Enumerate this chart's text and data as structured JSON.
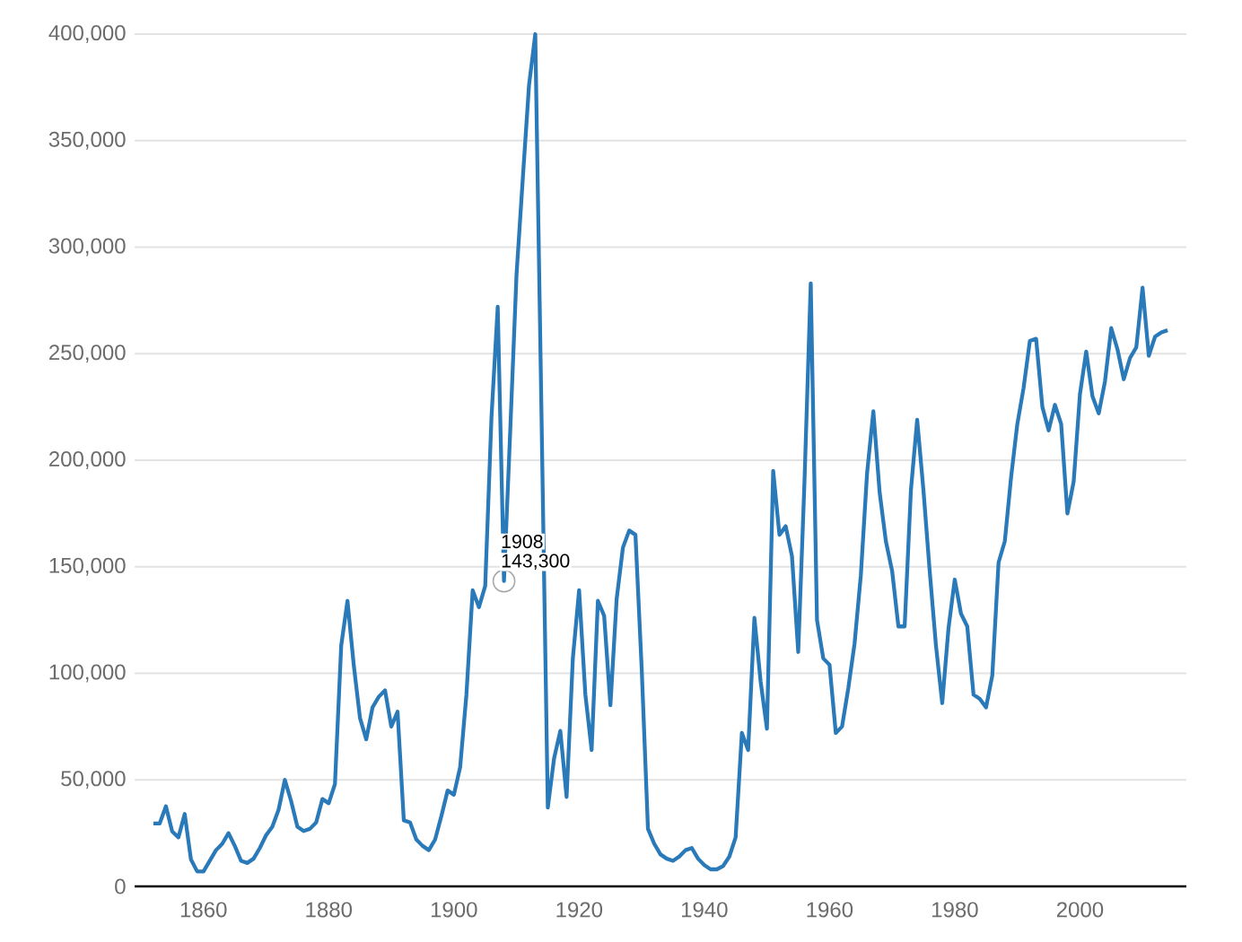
{
  "chart_data": {
    "type": "line",
    "x": [
      1852,
      1853,
      1854,
      1855,
      1856,
      1857,
      1858,
      1859,
      1860,
      1861,
      1862,
      1863,
      1864,
      1865,
      1866,
      1867,
      1868,
      1869,
      1870,
      1871,
      1872,
      1873,
      1874,
      1875,
      1876,
      1877,
      1878,
      1879,
      1880,
      1881,
      1882,
      1883,
      1884,
      1885,
      1886,
      1887,
      1888,
      1889,
      1890,
      1891,
      1892,
      1893,
      1894,
      1895,
      1896,
      1897,
      1898,
      1899,
      1900,
      1901,
      1902,
      1903,
      1904,
      1905,
      1906,
      1907,
      1908,
      1909,
      1910,
      1911,
      1912,
      1913,
      1914,
      1915,
      1916,
      1917,
      1918,
      1919,
      1920,
      1921,
      1922,
      1923,
      1924,
      1925,
      1926,
      1927,
      1928,
      1929,
      1930,
      1931,
      1932,
      1933,
      1934,
      1935,
      1936,
      1937,
      1938,
      1939,
      1940,
      1941,
      1942,
      1943,
      1944,
      1945,
      1946,
      1947,
      1948,
      1949,
      1950,
      1951,
      1952,
      1953,
      1954,
      1955,
      1956,
      1957,
      1958,
      1959,
      1960,
      1961,
      1962,
      1963,
      1964,
      1965,
      1966,
      1967,
      1968,
      1969,
      1970,
      1971,
      1972,
      1973,
      1974,
      1975,
      1976,
      1977,
      1978,
      1979,
      1980,
      1981,
      1982,
      1983,
      1984,
      1985,
      1986,
      1987,
      1988,
      1989,
      1990,
      1991,
      1992,
      1993,
      1994,
      1995,
      1996,
      1997,
      1998,
      1999,
      2000,
      2001,
      2002,
      2003,
      2004,
      2005,
      2006,
      2007,
      2008,
      2009,
      2010,
      2011,
      2012,
      2013,
      2014
    ],
    "series": [
      {
        "color": "#2a7ab9",
        "values": [
          29500,
          29500,
          37600,
          25800,
          23000,
          34000,
          12600,
          7000,
          7000,
          12000,
          17000,
          20000,
          25000,
          19000,
          12000,
          11000,
          13000,
          18000,
          24000,
          28000,
          36000,
          50000,
          40000,
          28000,
          26000,
          27000,
          30000,
          41000,
          39000,
          48000,
          113000,
          134000,
          104000,
          79000,
          69000,
          84000,
          89000,
          92000,
          75000,
          82000,
          31000,
          30000,
          22000,
          19000,
          17000,
          22000,
          33000,
          45000,
          43000,
          56000,
          90000,
          139000,
          131000,
          141000,
          220000,
          272000,
          143300,
          214000,
          287000,
          332000,
          376000,
          400000,
          220000,
          37000,
          60000,
          73000,
          42000,
          107000,
          139000,
          90000,
          64000,
          134000,
          127000,
          85000,
          135000,
          159000,
          167000,
          165000,
          102000,
          27000,
          20000,
          15000,
          13000,
          12000,
          14000,
          17000,
          18000,
          13000,
          10000,
          8000,
          8000,
          9500,
          14000,
          23000,
          72000,
          64000,
          126000,
          96000,
          74000,
          195000,
          165000,
          169000,
          155000,
          110000,
          190000,
          283000,
          125000,
          107000,
          104000,
          72000,
          75000,
          93000,
          114000,
          146000,
          194000,
          223000,
          185000,
          162000,
          148000,
          122000,
          122000,
          186000,
          219000,
          186000,
          148000,
          113000,
          86000,
          121000,
          144000,
          128000,
          122000,
          90000,
          88000,
          84000,
          99000,
          152000,
          162000,
          192000,
          217000,
          234000,
          256000,
          257000,
          225000,
          214000,
          226000,
          217000,
          175000,
          190000,
          231000,
          251000,
          230000,
          222000,
          237000,
          262000,
          252000,
          238000,
          248000,
          253000,
          281000,
          249000,
          258000,
          260000,
          261000
        ]
      }
    ],
    "xlim": [
      1849,
      2017
    ],
    "ylim": [
      0,
      400000
    ],
    "xticks": [
      1860,
      1880,
      1900,
      1920,
      1940,
      1960,
      1980,
      2000
    ],
    "yticks": [
      0,
      {
        "value": 50000,
        "label": "50,000"
      },
      {
        "value": 100000,
        "label": "100,000"
      },
      {
        "value": 150000,
        "label": "150,000"
      },
      {
        "value": 200000,
        "label": "200,000"
      },
      {
        "value": 250000,
        "label": "250,000"
      },
      {
        "value": 300000,
        "label": "300,000"
      },
      {
        "value": 350000,
        "label": "350,000"
      },
      {
        "value": 400000,
        "label": "400,000"
      }
    ],
    "grid": "y",
    "marker": "none",
    "line_style": "solid",
    "annotations": [
      {
        "text": "1908",
        "x": 1908,
        "y": 143300
      },
      {
        "text": "143,300",
        "x": 1908,
        "y": 143300
      }
    ]
  }
}
